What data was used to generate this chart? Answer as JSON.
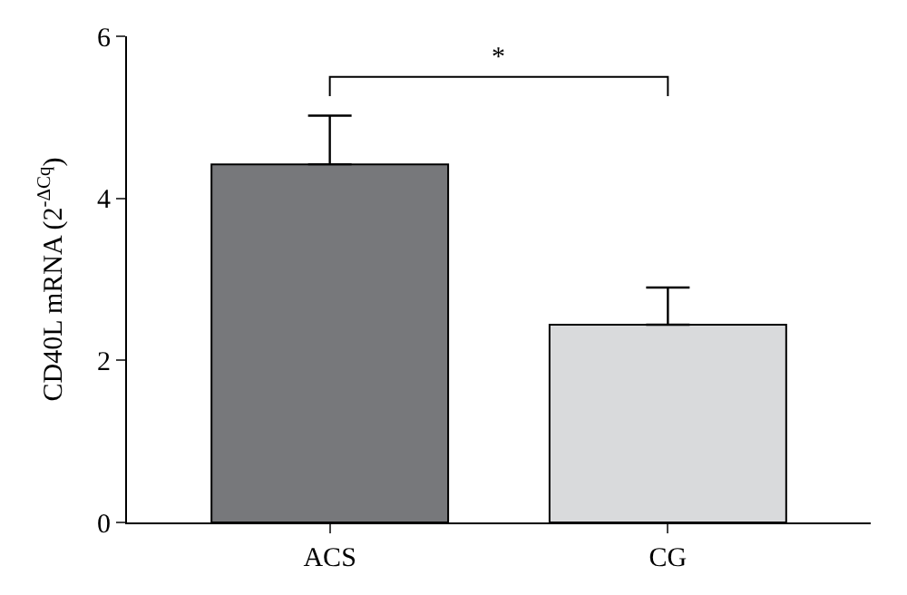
{
  "chart_data": {
    "type": "bar",
    "ylabel": "CD40L mRNA (2$^{-ΔCq}$)",
    "categories": [
      "ACS",
      "CG"
    ],
    "values": [
      4.42,
      2.44
    ],
    "colors": [
      "#77787b",
      "#d9dadc"
    ],
    "errors": [
      [
        4.42,
        5.02
      ],
      [
        2.44,
        2.9
      ]
    ],
    "ylim": [
      0,
      6
    ],
    "yticks": [
      0,
      2,
      4,
      6
    ],
    "annotations": [
      "*"
    ]
  }
}
